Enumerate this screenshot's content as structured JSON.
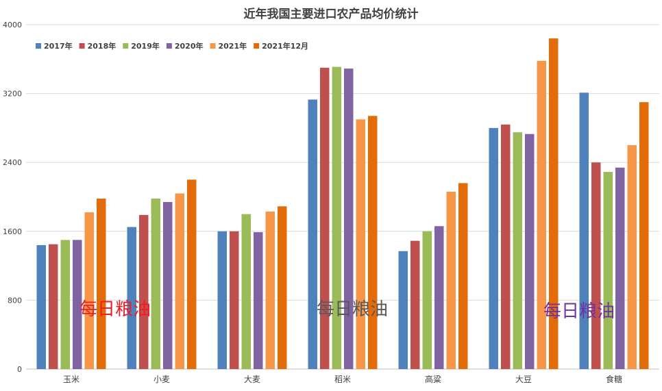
{
  "chart_data": {
    "type": "bar",
    "title": "近年我国主要进口农产品均价统计",
    "xlabel": "",
    "ylabel": "",
    "ylim": [
      0,
      4000
    ],
    "yticks": [
      0,
      800,
      1600,
      2400,
      3200,
      4000
    ],
    "grid": true,
    "legend_position": "top-left",
    "categories": [
      "玉米",
      "小麦",
      "大麦",
      "稻米",
      "高粱",
      "大豆",
      "食糖"
    ],
    "series": [
      {
        "name": "2017年",
        "color": "#4F81BD",
        "values": [
          1440,
          1650,
          1600,
          3130,
          1370,
          2800,
          3210
        ]
      },
      {
        "name": "2018年",
        "color": "#C0504D",
        "values": [
          1450,
          1790,
          1600,
          3500,
          1490,
          2840,
          2400
        ]
      },
      {
        "name": "2019年",
        "color": "#9BBB59",
        "values": [
          1500,
          1980,
          1800,
          3510,
          1600,
          2750,
          2290
        ]
      },
      {
        "name": "2020年",
        "color": "#8064A2",
        "values": [
          1500,
          1940,
          1590,
          3490,
          1660,
          2730,
          2340
        ]
      },
      {
        "name": "2021年",
        "color": "#F79646",
        "values": [
          1820,
          2040,
          1830,
          2900,
          2060,
          3580,
          2600
        ]
      },
      {
        "name": "2021年12月",
        "color": "#E36C09",
        "values": [
          1980,
          2200,
          1890,
          2940,
          2160,
          3840,
          3100
        ]
      }
    ]
  },
  "watermarks": [
    {
      "text": "每日粮油",
      "color": "#EE1C25"
    },
    {
      "text": "每日粮油",
      "color": "#595959"
    },
    {
      "text": "每日粮油",
      "color": "#7030A0"
    }
  ]
}
